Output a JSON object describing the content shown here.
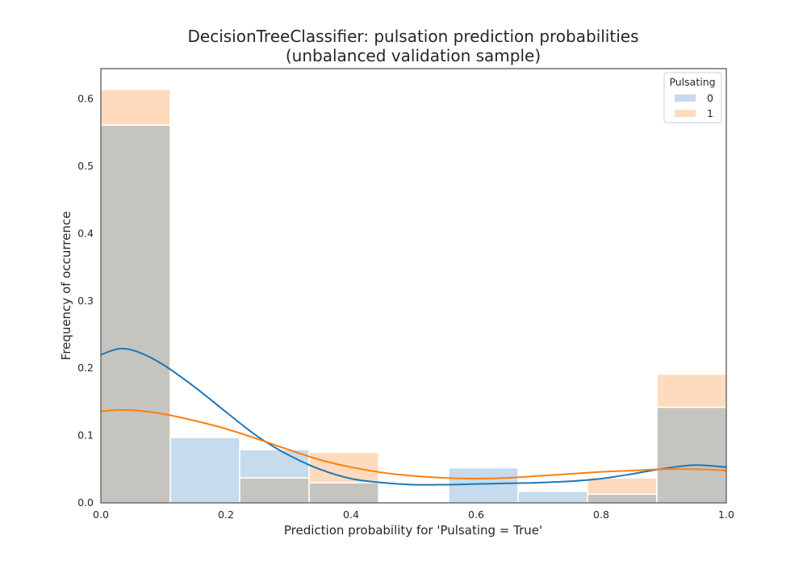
{
  "chart_data": {
    "type": "bar",
    "title_line1": "DecisionTreeClassifier: pulsation prediction probabilities",
    "title_line2": "(unbalanced validation sample)",
    "xlabel": "Prediction probability for 'Pulsating = True'",
    "ylabel": "Frequency of occurrence",
    "xlim": [
      0.0,
      1.0
    ],
    "ylim": [
      0.0,
      0.645
    ],
    "xticks": [
      "0.0",
      "0.2",
      "0.4",
      "0.6",
      "0.8",
      "1.0"
    ],
    "yticks": [
      "0.0",
      "0.1",
      "0.2",
      "0.3",
      "0.4",
      "0.5",
      "0.6"
    ],
    "grid": false,
    "legend": {
      "title": "Pulsating",
      "placement": "top-right"
    },
    "bin_edges": [
      0.0,
      0.111,
      0.222,
      0.333,
      0.444,
      0.556,
      0.667,
      0.778,
      0.889,
      1.0
    ],
    "series": [
      {
        "name": "0",
        "color": "#c6dbed",
        "line_color": "#1f77b4",
        "values": [
          0.561,
          0.097,
          0.079,
          0.03,
          0.0,
          0.052,
          0.017,
          0.013,
          0.142
        ],
        "kde": {
          "x": [
            0.0,
            0.03,
            0.06,
            0.1,
            0.15,
            0.2,
            0.25,
            0.3,
            0.35,
            0.4,
            0.45,
            0.5,
            0.55,
            0.6,
            0.65,
            0.7,
            0.75,
            0.8,
            0.85,
            0.9,
            0.95,
            1.0
          ],
          "y": [
            0.22,
            0.229,
            0.224,
            0.205,
            0.172,
            0.135,
            0.099,
            0.071,
            0.05,
            0.036,
            0.03,
            0.027,
            0.027,
            0.028,
            0.029,
            0.03,
            0.032,
            0.036,
            0.043,
            0.051,
            0.056,
            0.053
          ]
        }
      },
      {
        "name": "1",
        "color": "#ffdbbd",
        "line_color": "#ff7f0e",
        "values": [
          0.614,
          0.0,
          0.037,
          0.075,
          0.0,
          0.0,
          0.0,
          0.037,
          0.191
        ],
        "kde": {
          "x": [
            0.0,
            0.03,
            0.06,
            0.1,
            0.15,
            0.2,
            0.25,
            0.3,
            0.35,
            0.4,
            0.45,
            0.5,
            0.55,
            0.6,
            0.65,
            0.7,
            0.75,
            0.8,
            0.85,
            0.9,
            0.95,
            1.0
          ],
          "y": [
            0.136,
            0.138,
            0.137,
            0.132,
            0.122,
            0.11,
            0.095,
            0.079,
            0.064,
            0.053,
            0.045,
            0.04,
            0.037,
            0.036,
            0.037,
            0.04,
            0.043,
            0.046,
            0.048,
            0.05,
            0.05,
            0.048
          ]
        }
      }
    ],
    "overlap_color": "#c5c4bf"
  }
}
